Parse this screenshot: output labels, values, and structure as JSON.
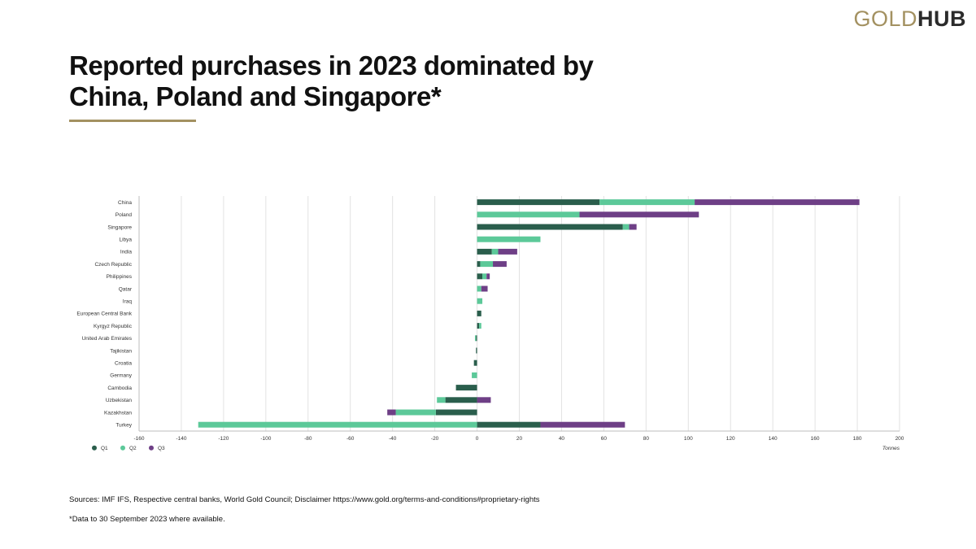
{
  "logo": {
    "gold": "GOLD",
    "hub": "HUB"
  },
  "title": "Reported purchases in 2023 dominated by China, Poland and Singapore*",
  "sources": "Sources: IMF IFS, Respective central banks, World Gold Council; Disclaimer https://www.gold.org/terms-and-conditions#proprietary-rights",
  "note": "*Data to 30 September 2023 where available.",
  "colors": {
    "Q1": "#2a5e4c",
    "Q2": "#5cc999",
    "Q3": "#6e3f86",
    "accent": "#a39161"
  },
  "chart_data": {
    "type": "bar",
    "orientation": "horizontal",
    "stacked": true,
    "categories": [
      "China",
      "Poland",
      "Singapore",
      "Libya",
      "India",
      "Czech Republic",
      "Philippines",
      "Qatar",
      "Iraq",
      "European Central Bank",
      "Kyrgyz Republic",
      "United Arab Emirates",
      "Tajikistan",
      "Croatia",
      "Germany",
      "Cambodia",
      "Uzbekistan",
      "Kazakhstan",
      "Turkey"
    ],
    "series": [
      {
        "name": "Q1",
        "values": [
          58,
          0,
          69,
          0,
          7,
          1.5,
          2.5,
          0,
          0,
          2,
          1,
          -0.5,
          -0.5,
          -1.5,
          0,
          -10,
          -15,
          -19.5,
          30
        ]
      },
      {
        "name": "Q2",
        "values": [
          45,
          48.5,
          3,
          30,
          3,
          6,
          2,
          2,
          2.5,
          0,
          1,
          -0.5,
          0,
          0,
          -2.5,
          0,
          -4,
          -19,
          -132
        ]
      },
      {
        "name": "Q3",
        "values": [
          78,
          56.5,
          3.5,
          0,
          9,
          6.5,
          1.5,
          3,
          0,
          0,
          0,
          0,
          0,
          0,
          0,
          0,
          6.5,
          -4,
          40
        ]
      }
    ],
    "xlabel": "Tonnes",
    "ylabel": "",
    "xlim": [
      -160,
      200
    ],
    "xticks": [
      -160,
      -140,
      -120,
      -100,
      -80,
      -60,
      -40,
      -20,
      0,
      20,
      40,
      60,
      80,
      100,
      120,
      140,
      160,
      180,
      200
    ],
    "grid": "vertical",
    "legend": "bottom-left"
  }
}
